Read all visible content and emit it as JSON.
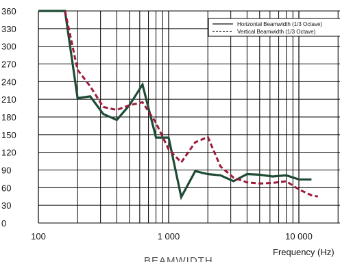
{
  "chart_data": {
    "type": "line",
    "xscale": "log",
    "xlim": [
      100,
      20000
    ],
    "ylim": [
      0,
      360
    ],
    "grid": true,
    "legend_position": "top-right",
    "xlabel": "Frequency (Hz)",
    "ylabel": "",
    "caption": "BEAMWIDTH",
    "yticks": [
      0,
      30,
      60,
      90,
      120,
      150,
      180,
      210,
      240,
      270,
      300,
      330,
      360
    ],
    "xtick_values": [
      100,
      1000,
      10000
    ],
    "xtick_labels": [
      "100",
      "1 000",
      "10 000"
    ],
    "series": [
      {
        "name": "Horizontal Beamwidth (1/3 Octave)",
        "style": "solid",
        "color": "#1f4a33",
        "points": [
          [
            100,
            360
          ],
          [
            160,
            360
          ],
          [
            200,
            212
          ],
          [
            250,
            215
          ],
          [
            315,
            185
          ],
          [
            400,
            175
          ],
          [
            500,
            200
          ],
          [
            630,
            235
          ],
          [
            800,
            145
          ],
          [
            1000,
            145
          ],
          [
            1250,
            44
          ],
          [
            1600,
            88
          ],
          [
            2000,
            83
          ],
          [
            2500,
            81
          ],
          [
            3150,
            71
          ],
          [
            4000,
            83
          ],
          [
            5000,
            82
          ],
          [
            6300,
            79
          ],
          [
            8000,
            81
          ],
          [
            10000,
            74
          ],
          [
            12500,
            74
          ]
        ]
      },
      {
        "name": "Vertical Beamwidth (1/3 Octave)",
        "style": "dashed",
        "color": "#9b1b3a",
        "points": [
          [
            160,
            360
          ],
          [
            200,
            260
          ],
          [
            250,
            232
          ],
          [
            315,
            197
          ],
          [
            400,
            192
          ],
          [
            500,
            200
          ],
          [
            630,
            205
          ],
          [
            800,
            170
          ],
          [
            1000,
            125
          ],
          [
            1250,
            103
          ],
          [
            1600,
            137
          ],
          [
            2000,
            146
          ],
          [
            2500,
            96
          ],
          [
            3150,
            77
          ],
          [
            4000,
            69
          ],
          [
            5000,
            67
          ],
          [
            6300,
            68
          ],
          [
            8000,
            71
          ],
          [
            10000,
            57
          ],
          [
            12500,
            47
          ],
          [
            14000,
            45
          ]
        ]
      }
    ]
  },
  "colors": {
    "grid": "#000000",
    "horizontal": "#1f4a33",
    "vertical": "#9b1b3a"
  }
}
